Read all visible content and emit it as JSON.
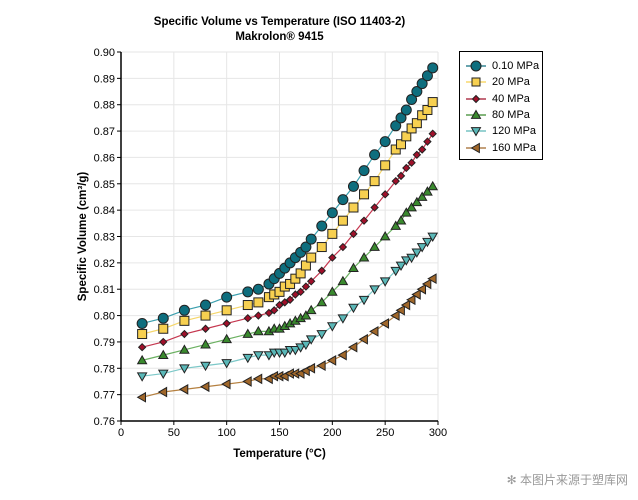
{
  "chart_data": {
    "type": "line",
    "title": "Specific Volume vs Temperature (ISO 11403-2)",
    "subtitle": "Makrolon® 9415",
    "xlabel": "Temperature (°C)",
    "ylabel": "Specific Volume (cm³/g)",
    "xlim": [
      0,
      300
    ],
    "ylim": [
      0.76,
      0.9
    ],
    "xticks": [
      "0",
      "50",
      "100",
      "150",
      "200",
      "250",
      "300"
    ],
    "yticks": [
      "0.76",
      "0.77",
      "0.78",
      "0.79",
      "0.80",
      "0.81",
      "0.82",
      "0.83",
      "0.84",
      "0.85",
      "0.86",
      "0.87",
      "0.88",
      "0.89",
      "0.90"
    ],
    "grid": true,
    "legend_position": "right-top",
    "x": [
      20,
      40,
      60,
      80,
      100,
      120,
      130,
      140,
      145,
      150,
      155,
      160,
      165,
      170,
      175,
      180,
      190,
      200,
      210,
      220,
      230,
      240,
      250,
      260,
      265,
      270,
      275,
      280,
      285,
      290,
      295
    ],
    "series": [
      {
        "name": "0.10 MPa",
        "marker": "circle",
        "color": "#0e6e7e",
        "line": "#3b9fae",
        "values": [
          0.797,
          0.799,
          0.802,
          0.804,
          0.807,
          0.809,
          0.81,
          0.812,
          0.814,
          0.816,
          0.818,
          0.82,
          0.822,
          0.824,
          0.826,
          0.829,
          0.834,
          0.839,
          0.844,
          0.849,
          0.855,
          0.861,
          0.866,
          0.872,
          0.875,
          0.878,
          0.882,
          0.885,
          0.888,
          0.891,
          0.894
        ]
      },
      {
        "name": "20 MPa",
        "marker": "square",
        "color": "#f7d050",
        "line": "#f5d66a",
        "values": [
          0.793,
          0.795,
          0.798,
          0.8,
          0.802,
          0.804,
          0.805,
          0.807,
          0.808,
          0.809,
          0.811,
          0.812,
          0.814,
          0.816,
          0.819,
          0.822,
          0.826,
          0.831,
          0.836,
          0.841,
          0.846,
          0.851,
          0.857,
          0.863,
          0.865,
          0.868,
          0.871,
          0.873,
          0.876,
          0.878,
          0.881
        ]
      },
      {
        "name": "40 MPa",
        "marker": "diamond",
        "color": "#a0102a",
        "line": "#c5374f",
        "values": [
          0.788,
          0.79,
          0.793,
          0.795,
          0.797,
          0.799,
          0.8,
          0.801,
          0.802,
          0.804,
          0.805,
          0.806,
          0.808,
          0.809,
          0.811,
          0.813,
          0.817,
          0.822,
          0.826,
          0.831,
          0.836,
          0.841,
          0.846,
          0.851,
          0.853,
          0.856,
          0.858,
          0.861,
          0.863,
          0.866,
          0.869
        ]
      },
      {
        "name": "80 MPa",
        "marker": "triangle-up",
        "color": "#3a8a2e",
        "line": "#6ab060",
        "values": [
          0.783,
          0.785,
          0.787,
          0.789,
          0.791,
          0.793,
          0.794,
          0.794,
          0.795,
          0.795,
          0.796,
          0.797,
          0.798,
          0.799,
          0.8,
          0.802,
          0.805,
          0.809,
          0.813,
          0.818,
          0.822,
          0.826,
          0.83,
          0.834,
          0.836,
          0.839,
          0.841,
          0.843,
          0.845,
          0.847,
          0.849
        ]
      },
      {
        "name": "120 MPa",
        "marker": "triangle-down",
        "color": "#5ab8b8",
        "line": "#7cc8c8",
        "values": [
          0.777,
          0.778,
          0.78,
          0.781,
          0.782,
          0.784,
          0.785,
          0.785,
          0.786,
          0.786,
          0.786,
          0.787,
          0.787,
          0.788,
          0.789,
          0.791,
          0.793,
          0.796,
          0.799,
          0.803,
          0.806,
          0.81,
          0.813,
          0.817,
          0.819,
          0.821,
          0.822,
          0.824,
          0.826,
          0.828,
          0.83
        ]
      },
      {
        "name": "160 MPa",
        "marker": "triangle-left",
        "color": "#a0672a",
        "line": "#b58040",
        "values": [
          0.769,
          0.771,
          0.772,
          0.773,
          0.774,
          0.775,
          0.776,
          0.776,
          0.777,
          0.777,
          0.777,
          0.778,
          0.778,
          0.778,
          0.779,
          0.78,
          0.781,
          0.783,
          0.785,
          0.788,
          0.791,
          0.794,
          0.797,
          0.8,
          0.802,
          0.804,
          0.806,
          0.808,
          0.81,
          0.812,
          0.814
        ]
      }
    ]
  },
  "watermark": "本图片来源于塑库网"
}
